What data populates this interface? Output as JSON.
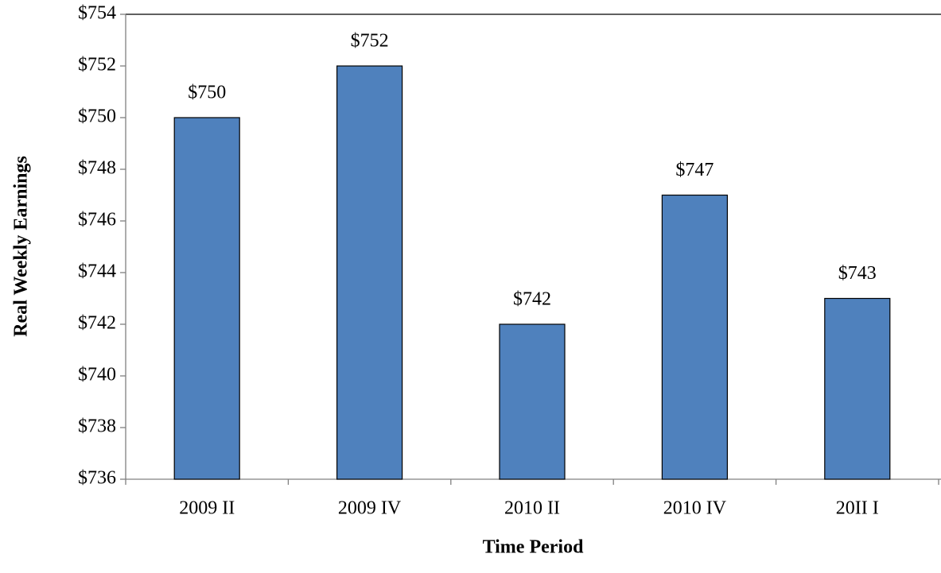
{
  "chart_data": {
    "type": "bar",
    "x_label": "Time Period",
    "y_label": "Real Weekly Earnings",
    "categories": [
      "2009 II",
      "2009 IV",
      "2010 II",
      "2010 IV",
      "20II I"
    ],
    "values": [
      750,
      752,
      742,
      747,
      743
    ],
    "value_labels": [
      "$750",
      "$752",
      "$742",
      "$747",
      "$743"
    ],
    "color": "#4f81bd",
    "ylim": [
      736,
      754
    ],
    "yticks": [
      {
        "value": 736,
        "label": "$736"
      },
      {
        "value": 738,
        "label": "$738"
      },
      {
        "value": 740,
        "label": "$740"
      },
      {
        "value": 742,
        "label": "$742"
      },
      {
        "value": 744,
        "label": "$744"
      },
      {
        "value": 746,
        "label": "$746"
      },
      {
        "value": 748,
        "label": "$748"
      },
      {
        "value": 750,
        "label": "$750"
      },
      {
        "value": 752,
        "label": "$752"
      },
      {
        "value": 754,
        "label": "$754"
      }
    ],
    "grid": false
  }
}
